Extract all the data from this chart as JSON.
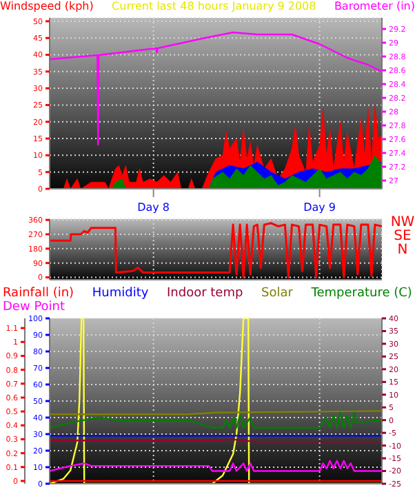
{
  "chart_data": [
    {
      "type": "area",
      "title": "Current last 48 hours January 9 2008",
      "ylabel": "Windspeed (kph)",
      "y2label": "Barometer (in)",
      "xlim": [
        "2008-01-07T09:00",
        "2008-01-09T09:00"
      ],
      "xticks": [
        {
          "value": "2008-01-08",
          "label": "Day 8"
        },
        {
          "value": "2008-01-09",
          "label": "Day 9"
        }
      ],
      "ylim": [
        0,
        51
      ],
      "yticks": [
        0,
        5,
        10,
        15,
        20,
        25,
        30,
        35,
        40,
        45,
        50
      ],
      "y2lim": [
        26.88,
        29.36
      ],
      "y2ticks": [
        27,
        27.2,
        27.4,
        27.6,
        27.8,
        28,
        28.2,
        28.4,
        28.6,
        28.8,
        29,
        29.2
      ],
      "grid": true,
      "series": [
        {
          "color": "#ff0000",
          "x": [
            "2008-01-07T09:00",
            "2008-01-07T11:00",
            "2008-01-07T11:30",
            "2008-01-07T12:00",
            "2008-01-07T13:00",
            "2008-01-07T13:30",
            "2008-01-07T15:00",
            "2008-01-07T17:00",
            "2008-01-07T17:30",
            "2008-01-07T18:30",
            "2008-01-07T19:00",
            "2008-01-07T19:30",
            "2008-01-07T20:00",
            "2008-01-07T20:30",
            "2008-01-07T21:30",
            "2008-01-07T22:00",
            "2008-01-07T22:30",
            "2008-01-07T23:30",
            "2008-01-08T00:30",
            "2008-01-08T01:30",
            "2008-01-08T02:30",
            "2008-01-08T03:30",
            "2008-01-08T04:00",
            "2008-01-08T05:00",
            "2008-01-08T05:30",
            "2008-01-08T06:00",
            "2008-01-08T07:00",
            "2008-01-08T08:00",
            "2008-01-08T09:00",
            "2008-01-08T10:00",
            "2008-01-08T10:30",
            "2008-01-08T11:00",
            "2008-01-08T12:00",
            "2008-01-08T12:30",
            "2008-01-08T13:00",
            "2008-01-08T13:30",
            "2008-01-08T14:00",
            "2008-01-08T14:30",
            "2008-01-08T15:00",
            "2008-01-08T16:00",
            "2008-01-08T17:00",
            "2008-01-08T18:00",
            "2008-01-08T19:00",
            "2008-01-08T20:00",
            "2008-01-08T20:30",
            "2008-01-08T21:00",
            "2008-01-08T22:00",
            "2008-01-08T22:30",
            "2008-01-08T23:00",
            "2008-01-09T00:00",
            "2008-01-09T00:30",
            "2008-01-09T01:00",
            "2008-01-09T01:30",
            "2008-01-09T02:00",
            "2008-01-09T03:00",
            "2008-01-09T03:30",
            "2008-01-09T04:00",
            "2008-01-09T05:00",
            "2008-01-09T06:00",
            "2008-01-09T06:30",
            "2008-01-09T07:00",
            "2008-01-09T07:30",
            "2008-01-09T08:00",
            "2008-01-09T08:30",
            "2008-01-09T09:00"
          ],
          "values": [
            0,
            0,
            3,
            0,
            3,
            0,
            2,
            2,
            0,
            6,
            7,
            4,
            7,
            2,
            2,
            6,
            2,
            3,
            2,
            4,
            2,
            5,
            0,
            0,
            3,
            0,
            0,
            5,
            9,
            10,
            17,
            12,
            15,
            8,
            18,
            9,
            14,
            7,
            13,
            6,
            9,
            3,
            6,
            12,
            19,
            10,
            5,
            19,
            8,
            13,
            24,
            10,
            18,
            6,
            20,
            8,
            17,
            6,
            21,
            10,
            24,
            8,
            25,
            15,
            16
          ]
        },
        {
          "color": "#0000ff",
          "x": [
            "2008-01-07T09:00",
            "2008-01-08T08:00",
            "2008-01-08T09:00",
            "2008-01-08T11:00",
            "2008-01-08T13:00",
            "2008-01-08T15:00",
            "2008-01-08T17:00",
            "2008-01-08T19:00",
            "2008-01-08T21:00",
            "2008-01-08T23:00",
            "2008-01-09T01:00",
            "2008-01-09T03:00",
            "2008-01-09T05:00",
            "2008-01-09T07:00",
            "2008-01-09T09:00"
          ],
          "values": [
            0,
            0,
            5,
            7,
            6,
            8,
            5,
            3,
            5,
            6,
            5,
            6,
            6,
            7,
            8
          ]
        },
        {
          "color": "#008000",
          "x": [
            "2008-01-07T09:00",
            "2008-01-07T18:00",
            "2008-01-07T18:30",
            "2008-01-07T19:30",
            "2008-01-07T20:00",
            "2008-01-08T08:00",
            "2008-01-08T08:30",
            "2008-01-08T10:00",
            "2008-01-08T11:00",
            "2008-01-08T12:00",
            "2008-01-08T13:00",
            "2008-01-08T14:00",
            "2008-01-08T15:00",
            "2008-01-08T16:00",
            "2008-01-08T17:00",
            "2008-01-08T18:00",
            "2008-01-08T19:00",
            "2008-01-08T20:00",
            "2008-01-08T21:00",
            "2008-01-08T22:00",
            "2008-01-08T23:00",
            "2008-01-09T00:00",
            "2008-01-09T01:00",
            "2008-01-09T02:00",
            "2008-01-09T03:00",
            "2008-01-09T04:00",
            "2008-01-09T05:00",
            "2008-01-09T06:00",
            "2008-01-09T07:00",
            "2008-01-09T08:00",
            "2008-01-09T09:00"
          ],
          "values": [
            0,
            0,
            2,
            3,
            0,
            0,
            3,
            5,
            3,
            6,
            4,
            7,
            5,
            3,
            4,
            1,
            2,
            4,
            3,
            2,
            4,
            6,
            3,
            4,
            5,
            3,
            5,
            4,
            6,
            10,
            7
          ]
        },
        {
          "type": "line",
          "axis": "y2",
          "color": "#ff00ff",
          "x": [
            "2008-01-07T09:00",
            "2008-01-07T15:54",
            "2008-01-07T16:00",
            "2008-01-07T16:06",
            "2008-01-08T00:24",
            "2008-01-08T00:30",
            "2008-01-08T00:36",
            "2008-01-08T07:00",
            "2008-01-08T11:30",
            "2008-01-08T15:00",
            "2008-01-08T20:00",
            "2008-01-09T00:00",
            "2008-01-09T04:00",
            "2008-01-09T07:00",
            "2008-01-09T09:00"
          ],
          "values": [
            28.76,
            28.82,
            27.52,
            28.82,
            28.92,
            28.86,
            28.92,
            29.06,
            29.15,
            29.12,
            29.12,
            28.98,
            28.78,
            28.68,
            28.58
          ]
        }
      ]
    },
    {
      "type": "line",
      "y2label": "NWSEN",
      "xlim": [
        "2008-01-07T09:00",
        "2008-01-09T09:00"
      ],
      "xticks": [
        {
          "value": "2008-01-08",
          "label": null
        },
        {
          "value": "2008-01-09",
          "label": null
        }
      ],
      "ylim": [
        -15,
        365
      ],
      "yticks": [
        0,
        90,
        180,
        270,
        360
      ],
      "grid": true,
      "tick_labels": "y",
      "series": [
        {
          "color": "#ff0000",
          "x": [
            "2008-01-07T09:00",
            "2008-01-07T12:00",
            "2008-01-07T12:06",
            "2008-01-07T13:30",
            "2008-01-07T14:00",
            "2008-01-07T14:30",
            "2008-01-07T15:00",
            "2008-01-07T18:30",
            "2008-01-07T18:36",
            "2008-01-07T21:00",
            "2008-01-07T21:48",
            "2008-01-07T22:30",
            "2008-01-08T11:00",
            "2008-01-08T11:30",
            "2008-01-08T12:00",
            "2008-01-08T12:30",
            "2008-01-08T13:00",
            "2008-01-08T13:30",
            "2008-01-08T14:00",
            "2008-01-08T14:30",
            "2008-01-08T15:00",
            "2008-01-08T15:30",
            "2008-01-08T16:00",
            "2008-01-08T17:00",
            "2008-01-08T18:00",
            "2008-01-08T19:00",
            "2008-01-08T19:30",
            "2008-01-08T20:00",
            "2008-01-08T21:00",
            "2008-01-08T21:30",
            "2008-01-08T22:00",
            "2008-01-08T23:00",
            "2008-01-08T23:30",
            "2008-01-09T00:00",
            "2008-01-09T01:00",
            "2008-01-09T01:30",
            "2008-01-09T02:00",
            "2008-01-09T03:00",
            "2008-01-09T03:30",
            "2008-01-09T04:00",
            "2008-01-09T05:00",
            "2008-01-09T05:30",
            "2008-01-09T06:00",
            "2008-01-09T07:00",
            "2008-01-09T07:30",
            "2008-01-09T08:00",
            "2008-01-09T09:00"
          ],
          "values": [
            230,
            230,
            270,
            270,
            290,
            280,
            310,
            310,
            30,
            40,
            60,
            30,
            30,
            330,
            20,
            330,
            0,
            330,
            20,
            320,
            330,
            60,
            330,
            340,
            320,
            330,
            0,
            330,
            320,
            40,
            330,
            330,
            0,
            330,
            320,
            60,
            330,
            330,
            0,
            330,
            320,
            20,
            330,
            330,
            10,
            330,
            320
          ]
        }
      ]
    },
    {
      "type": "line",
      "legend": "top",
      "xlim": [
        "2008-01-07T09:00",
        "2008-01-09T09:00"
      ],
      "xticks": [
        {
          "value": "2008-01-08",
          "label": null
        },
        {
          "value": "2008-01-09",
          "label": null
        }
      ],
      "ylim": [
        0,
        100
      ],
      "yticks": [
        0,
        10,
        20,
        30,
        40,
        50,
        60,
        70,
        80,
        90,
        100
      ],
      "y2lim": [
        -0.02,
        1.17
      ],
      "y2ticks": [
        0,
        0.1,
        0.2,
        0.3,
        0.4,
        0.5,
        0.6,
        0.7,
        0.8,
        0.9,
        1,
        1.1
      ],
      "y3lim": [
        -25,
        40
      ],
      "y3ticks": [
        -25,
        -20,
        -15,
        -10,
        -5,
        0,
        5,
        10,
        15,
        20,
        25,
        30,
        35,
        40
      ],
      "grid": true,
      "tick_labels": "y",
      "series": [
        {
          "color": "#ffff33",
          "x": [
            "2008-01-07T09:00",
            "2008-01-07T11:00",
            "2008-01-07T12:00",
            "2008-01-07T13:00",
            "2008-01-07T13:18",
            "2008-01-07T13:36",
            "2008-01-07T13:54",
            "2008-01-07T14:00",
            "2008-01-08T08:30",
            "2008-01-08T10:00",
            "2008-01-08T11:30",
            "2008-01-08T12:00",
            "2008-01-08T12:30",
            "2008-01-08T13:00",
            "2008-01-08T13:42",
            "2008-01-08T13:48",
            "2008-01-09T09:00"
          ],
          "values": [
            0,
            3,
            8,
            25,
            50,
            100,
            100,
            0,
            0,
            5,
            18,
            30,
            55,
            100,
            100,
            0,
            0
          ]
        },
        {
          "name": "Rainfall (in)",
          "axis": "y2",
          "color": "#ff0000",
          "x": [
            "2008-01-07T09:00",
            "2008-01-09T09:00"
          ],
          "values": [
            0,
            0
          ]
        },
        {
          "name": "Humidity",
          "color": "#0000ff",
          "x": [
            "2008-01-07T09:00",
            "2008-01-09T09:00"
          ],
          "values": [
            29,
            29
          ]
        },
        {
          "name": "Indoor temp",
          "axis": "y3",
          "color": "#990033",
          "x": [
            "2008-01-07T09:00",
            "2008-01-08T09:00",
            "2008-01-08T11:00",
            "2008-01-08T15:00",
            "2008-01-09T09:00"
          ],
          "values": [
            -8,
            -8,
            -7.5,
            -8.5,
            -8.5
          ]
        },
        {
          "name": "Solar",
          "color": "#808000",
          "x": [
            "2008-01-07T09:00",
            "2008-01-08T05:00",
            "2008-01-08T09:00",
            "2008-01-09T09:00"
          ],
          "values": [
            42,
            42,
            43,
            44
          ]
        },
        {
          "name": "Temperature (C)",
          "axis": "y3",
          "color": "#008000",
          "x": [
            "2008-01-07T09:00",
            "2008-01-07T12:00",
            "2008-01-07T14:00",
            "2008-01-07T16:00",
            "2008-01-07T19:00",
            "2008-01-08T05:00",
            "2008-01-08T08:30",
            "2008-01-08T10:00",
            "2008-01-08T10:30",
            "2008-01-08T11:00",
            "2008-01-08T11:30",
            "2008-01-08T12:00",
            "2008-01-08T12:30",
            "2008-01-08T13:00",
            "2008-01-08T14:00",
            "2008-01-08T14:30",
            "2008-01-09T00:00",
            "2008-01-09T01:00",
            "2008-01-09T01:30",
            "2008-01-09T02:00",
            "2008-01-09T02:30",
            "2008-01-09T03:00",
            "2008-01-09T03:30",
            "2008-01-09T04:00",
            "2008-01-09T04:30",
            "2008-01-09T05:00",
            "2008-01-09T05:30",
            "2008-01-09T09:00"
          ],
          "values": [
            -3,
            -1,
            0,
            1,
            0,
            0,
            -3,
            -3,
            0,
            -3,
            1,
            -3,
            2,
            -3,
            1,
            -3,
            -3,
            1,
            -3,
            2,
            -3,
            3,
            -3,
            2,
            -3,
            3,
            -1,
            0
          ]
        },
        {
          "name": "Dew Point",
          "axis": "y3",
          "color": "#ff00ff",
          "x": [
            "2008-01-07T09:00",
            "2008-01-07T12:00",
            "2008-01-07T14:00",
            "2008-01-07T15:00",
            "2008-01-08T08:00",
            "2008-01-08T08:30",
            "2008-01-08T11:00",
            "2008-01-08T11:30",
            "2008-01-08T12:00",
            "2008-01-08T13:00",
            "2008-01-08T13:30",
            "2008-01-08T14:00",
            "2008-01-08T14:30",
            "2008-01-09T00:00",
            "2008-01-09T00:30",
            "2008-01-09T01:00",
            "2008-01-09T01:30",
            "2008-01-09T02:00",
            "2008-01-09T02:30",
            "2008-01-09T03:00",
            "2008-01-09T03:30",
            "2008-01-09T04:00",
            "2008-01-09T04:30",
            "2008-01-09T05:00",
            "2008-01-09T09:00"
          ],
          "values": [
            -20,
            -18,
            -17,
            -18,
            -18,
            -20,
            -20,
            -17,
            -20,
            -17,
            -20,
            -17,
            -20,
            -20,
            -17,
            -19,
            -16,
            -19,
            -16,
            -19,
            -16,
            -19,
            -17,
            -20,
            -20
          ]
        }
      ]
    }
  ]
}
